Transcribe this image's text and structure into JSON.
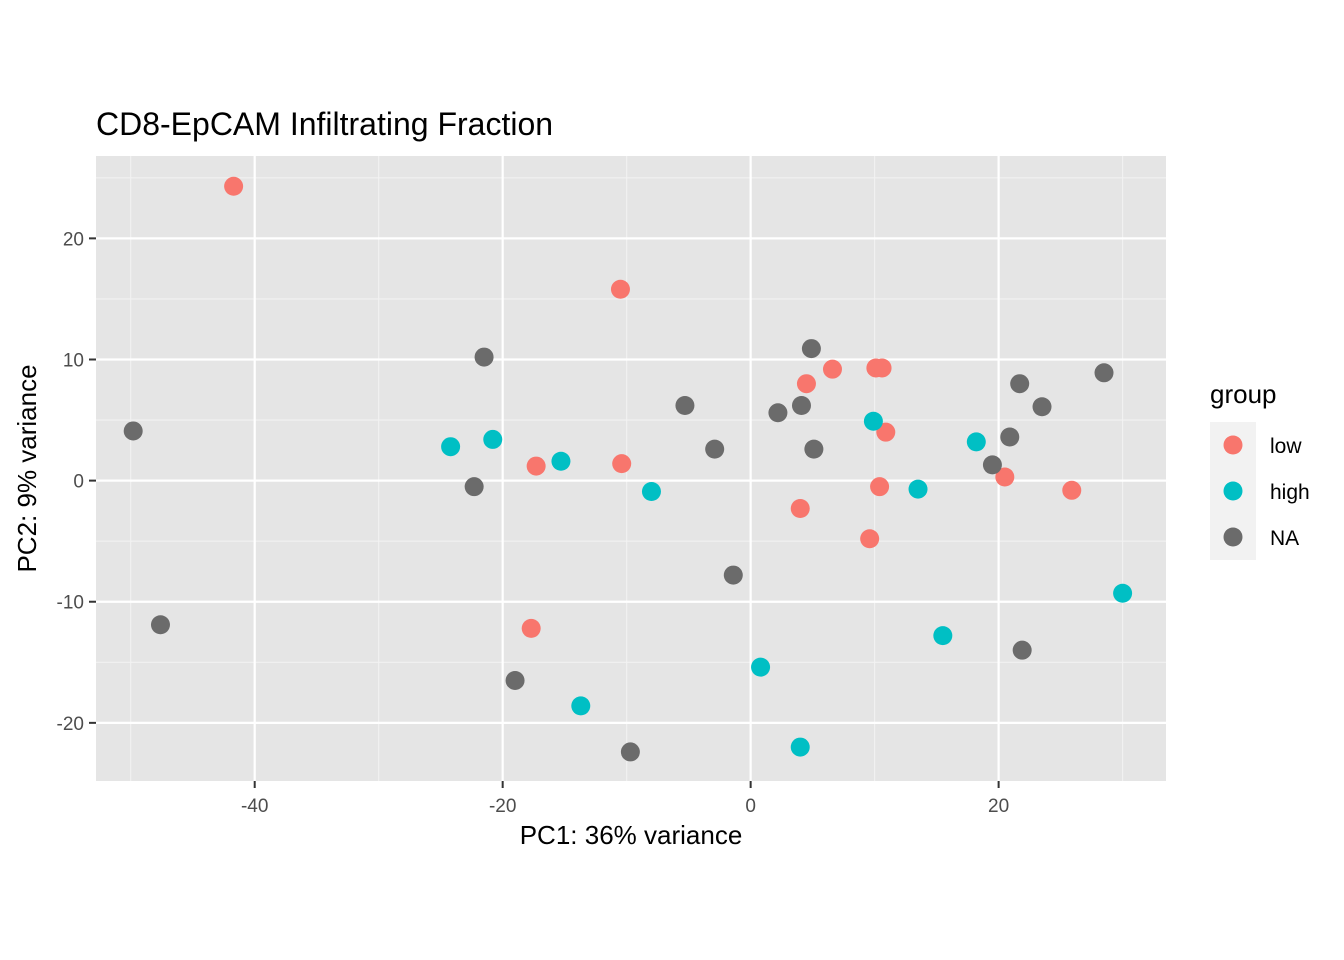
{
  "chart_data": {
    "type": "scatter",
    "title": "CD8-EpCAM Infiltrating Fraction",
    "xlabel": "PC1: 36% variance",
    "ylabel": "PC2: 9% variance",
    "xlim": [
      -52.8,
      33.5
    ],
    "ylim": [
      -24.8,
      26.8
    ],
    "x_ticks": [
      -40,
      -20,
      0,
      20
    ],
    "x_tick_labels": [
      "-40",
      "-20",
      "0",
      "20"
    ],
    "y_ticks": [
      20,
      10,
      0,
      -10,
      -20
    ],
    "y_tick_labels": [
      "20",
      "10",
      "0",
      "-10",
      "-20"
    ],
    "grid": true,
    "background": "#e5e5e5",
    "legend": {
      "title": "group",
      "position": "right",
      "entries": [
        {
          "label": "low",
          "color": "#F8766D"
        },
        {
          "label": "high",
          "color": "#00BFC4"
        },
        {
          "label": "NA",
          "color": "#6B6B6B"
        }
      ]
    },
    "series": [
      {
        "name": "low",
        "color": "#F8766D",
        "points": [
          {
            "x": -41.7,
            "y": 24.3
          },
          {
            "x": -10.5,
            "y": 15.8
          },
          {
            "x": 6.6,
            "y": 9.2
          },
          {
            "x": 10.1,
            "y": 9.3
          },
          {
            "x": 10.6,
            "y": 9.3
          },
          {
            "x": 4.5,
            "y": 8.0
          },
          {
            "x": 10.9,
            "y": 4.0
          },
          {
            "x": -17.3,
            "y": 1.2
          },
          {
            "x": -10.4,
            "y": 1.4
          },
          {
            "x": 20.5,
            "y": 0.3
          },
          {
            "x": 10.4,
            "y": -0.5
          },
          {
            "x": 25.9,
            "y": -0.8
          },
          {
            "x": 4.0,
            "y": -2.3
          },
          {
            "x": 9.6,
            "y": -4.8
          },
          {
            "x": -17.7,
            "y": -12.2
          }
        ]
      },
      {
        "name": "high",
        "color": "#00BFC4",
        "points": [
          {
            "x": 9.9,
            "y": 4.9
          },
          {
            "x": -20.8,
            "y": 3.4
          },
          {
            "x": 18.2,
            "y": 3.2
          },
          {
            "x": -24.2,
            "y": 2.8
          },
          {
            "x": -15.3,
            "y": 1.6
          },
          {
            "x": -8.0,
            "y": -0.9
          },
          {
            "x": 13.5,
            "y": -0.7
          },
          {
            "x": 30.0,
            "y": -9.3
          },
          {
            "x": 15.5,
            "y": -12.8
          },
          {
            "x": 0.8,
            "y": -15.4
          },
          {
            "x": -13.7,
            "y": -18.6
          },
          {
            "x": 4.0,
            "y": -22.0
          }
        ]
      },
      {
        "name": "NA",
        "color": "#6B6B6B",
        "points": [
          {
            "x": 4.9,
            "y": 10.9
          },
          {
            "x": -21.5,
            "y": 10.2
          },
          {
            "x": 28.5,
            "y": 8.9
          },
          {
            "x": 21.7,
            "y": 8.0
          },
          {
            "x": -5.3,
            "y": 6.2
          },
          {
            "x": 4.1,
            "y": 6.2
          },
          {
            "x": 23.5,
            "y": 6.1
          },
          {
            "x": 2.2,
            "y": 5.6
          },
          {
            "x": -49.8,
            "y": 4.1
          },
          {
            "x": 20.9,
            "y": 3.6
          },
          {
            "x": -2.9,
            "y": 2.6
          },
          {
            "x": 5.1,
            "y": 2.6
          },
          {
            "x": 19.5,
            "y": 1.3
          },
          {
            "x": -22.3,
            "y": -0.5
          },
          {
            "x": -1.4,
            "y": -7.8
          },
          {
            "x": -47.6,
            "y": -11.9
          },
          {
            "x": 21.9,
            "y": -14.0
          },
          {
            "x": -19.0,
            "y": -16.5
          },
          {
            "x": -9.7,
            "y": -22.4
          }
        ]
      }
    ]
  }
}
